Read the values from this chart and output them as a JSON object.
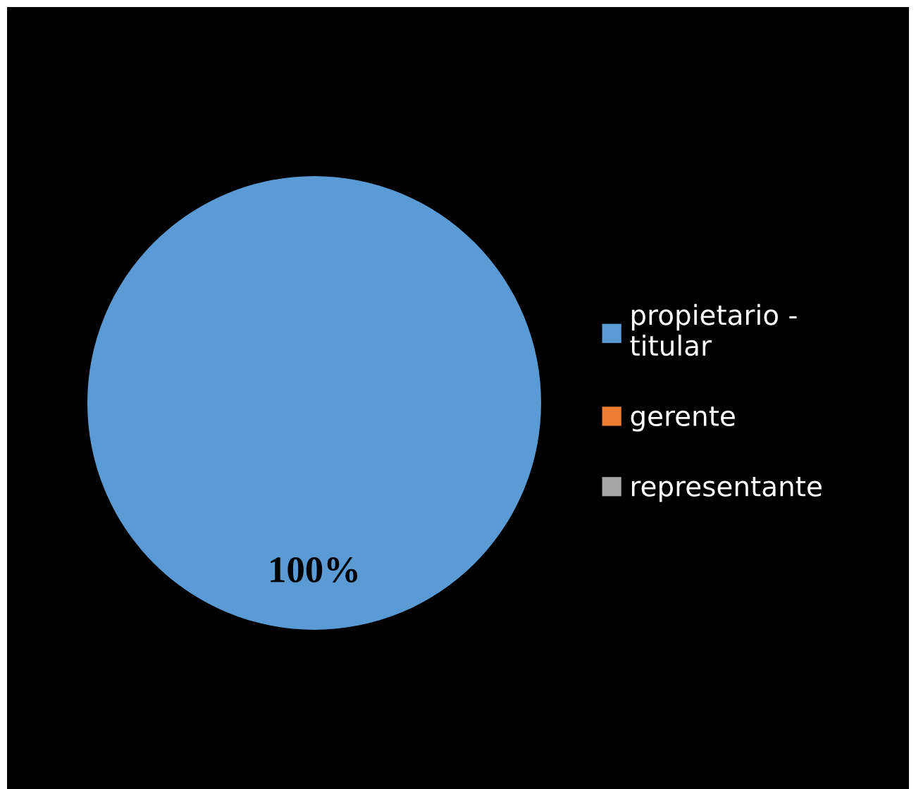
{
  "chart_data": {
    "type": "pie",
    "categories": [
      "propietario - titular",
      "gerente",
      "representante"
    ],
    "values": [
      100,
      0,
      0
    ],
    "colors": [
      "#5b9bd5",
      "#ed7d31",
      "#a5a5a5"
    ],
    "value_labels": [
      "100%",
      null,
      null
    ],
    "legend": "right"
  }
}
